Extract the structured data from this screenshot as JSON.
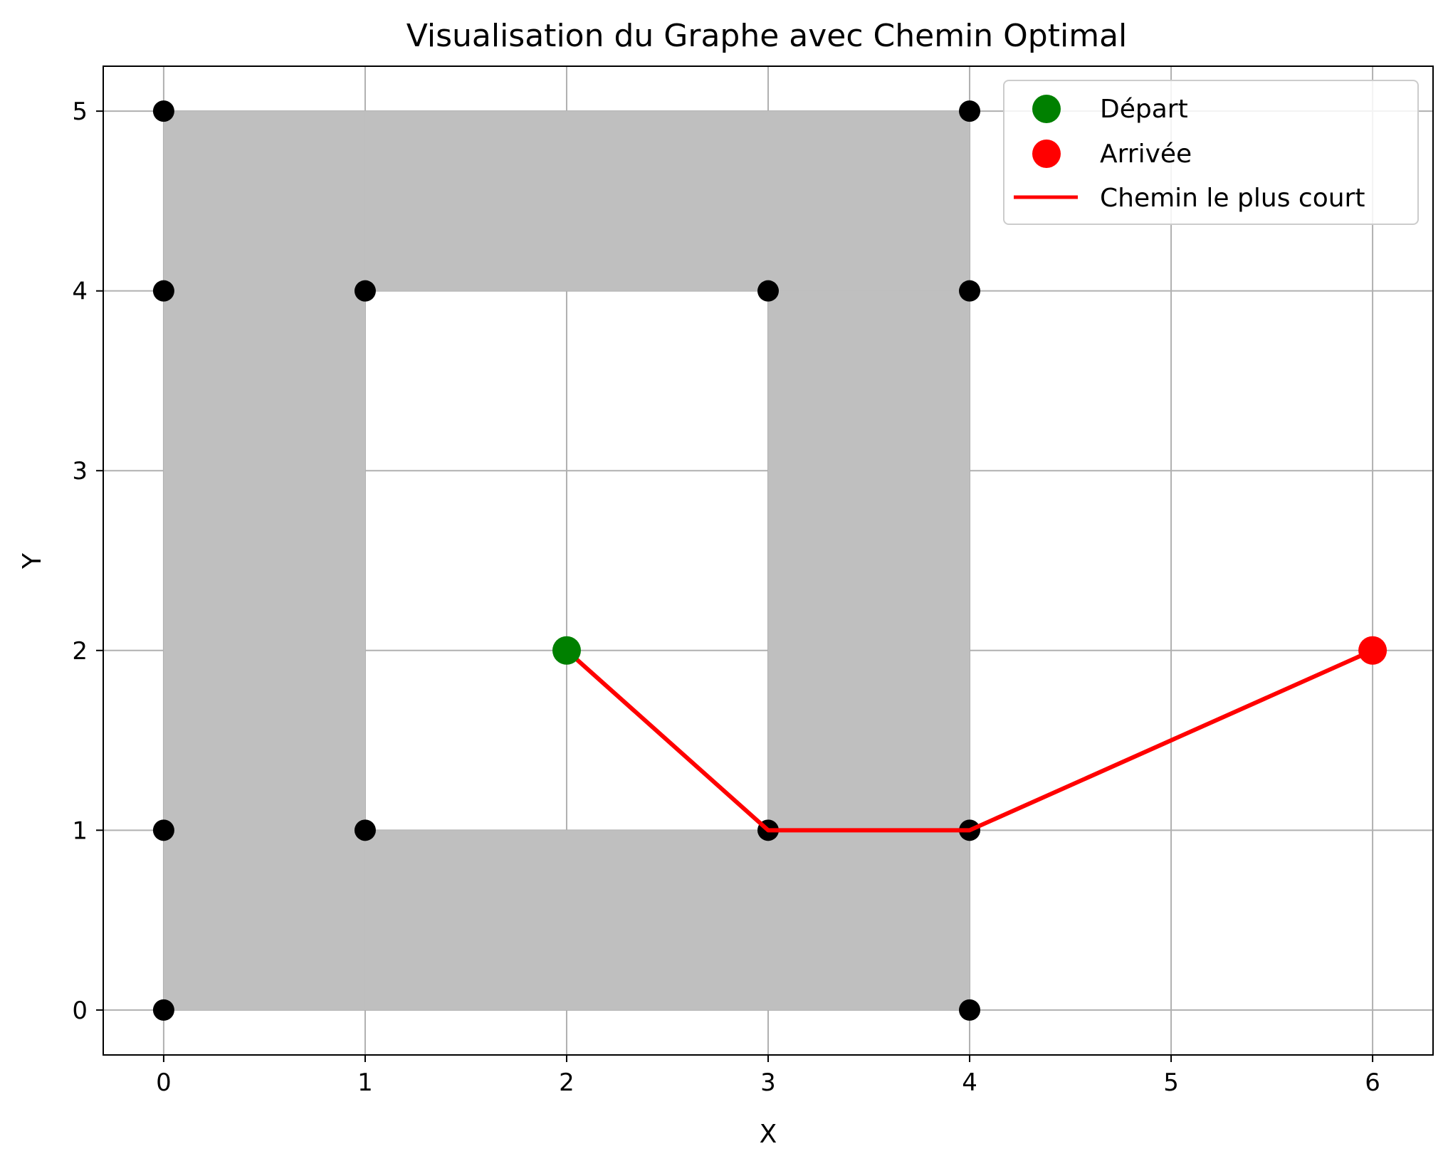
{
  "chart_data": {
    "type": "scatter",
    "title": "Visualisation du Graphe avec Chemin Optimal",
    "xlabel": "X",
    "ylabel": "Y",
    "xlim": [
      -0.3,
      6.3
    ],
    "ylim": [
      -0.25,
      5.25
    ],
    "xticks": [
      0,
      1,
      2,
      3,
      4,
      5,
      6
    ],
    "yticks": [
      0,
      1,
      2,
      3,
      4,
      5
    ],
    "grid": true,
    "legend_position": "top-right",
    "obstacles": [
      {
        "x": [
          0,
          1
        ],
        "y": [
          0,
          5
        ],
        "color": "#bfbfbf"
      },
      {
        "x": [
          1,
          4
        ],
        "y": [
          4,
          5
        ],
        "color": "#bfbfbf"
      },
      {
        "x": [
          3,
          4
        ],
        "y": [
          0,
          4
        ],
        "color": "#bfbfbf"
      },
      {
        "x": [
          1,
          3
        ],
        "y": [
          0,
          1
        ],
        "color": "#bfbfbf"
      }
    ],
    "nodes": [
      [
        0,
        5
      ],
      [
        4,
        5
      ],
      [
        0,
        4
      ],
      [
        1,
        4
      ],
      [
        3,
        4
      ],
      [
        4,
        4
      ],
      [
        0,
        1
      ],
      [
        1,
        1
      ],
      [
        3,
        1
      ],
      [
        4,
        1
      ],
      [
        0,
        0
      ],
      [
        4,
        0
      ]
    ],
    "start": {
      "x": 2,
      "y": 2,
      "label": "Départ",
      "color": "#008000"
    },
    "end": {
      "x": 6,
      "y": 2,
      "label": "Arrivée",
      "color": "#ff0000"
    },
    "path": {
      "label": "Chemin le plus court",
      "color": "#ff0000",
      "points": [
        [
          2,
          2
        ],
        [
          3,
          1
        ],
        [
          4,
          1
        ],
        [
          6,
          2
        ]
      ]
    }
  }
}
